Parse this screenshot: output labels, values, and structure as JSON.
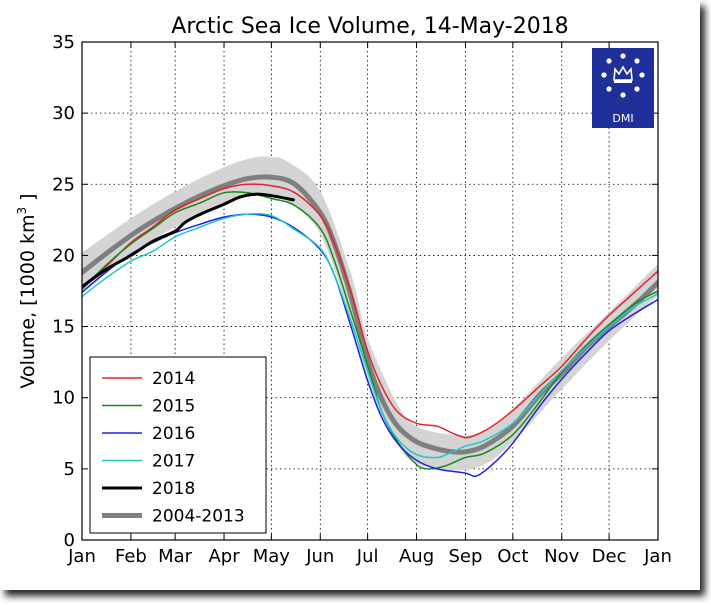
{
  "chart_data": {
    "type": "line",
    "title": "Arctic Sea Ice Volume, 14-May-2018",
    "ylabel_main": "Volume, [1000 km",
    "ylabel_sup": "3",
    "ylabel_end": " ]",
    "xlabel": "",
    "ylim": [
      0,
      35
    ],
    "xlim": [
      0,
      365
    ],
    "grid": true,
    "legend_placement": "lower-left",
    "x_ticks": [
      {
        "label": "Jan",
        "day": 0
      },
      {
        "label": "Feb",
        "day": 31
      },
      {
        "label": "Mar",
        "day": 59
      },
      {
        "label": "Apr",
        "day": 90
      },
      {
        "label": "May",
        "day": 120
      },
      {
        "label": "Jun",
        "day": 151
      },
      {
        "label": "Jul",
        "day": 181
      },
      {
        "label": "Aug",
        "day": 212
      },
      {
        "label": "Sep",
        "day": 243
      },
      {
        "label": "Oct",
        "day": 273
      },
      {
        "label": "Nov",
        "day": 304
      },
      {
        "label": "Dec",
        "day": 334
      },
      {
        "label": "Jan",
        "day": 365
      }
    ],
    "y_ticks": [
      0,
      5,
      10,
      15,
      20,
      25,
      30,
      35
    ],
    "band": {
      "x": [
        0,
        31,
        59,
        90,
        110,
        120,
        130,
        151,
        171,
        181,
        200,
        212,
        235,
        255,
        273,
        304,
        334,
        365
      ],
      "upper": [
        20.2,
        22.6,
        24.5,
        26.2,
        26.9,
        26.9,
        26.6,
        24.5,
        18.5,
        14.2,
        9.5,
        8.0,
        7.4,
        7.6,
        9.2,
        12.8,
        16.0,
        19.4
      ],
      "lower": [
        17.5,
        20.1,
        22.0,
        23.7,
        24.2,
        24.1,
        23.8,
        21.5,
        15.2,
        11.0,
        6.7,
        5.4,
        4.9,
        5.3,
        6.9,
        10.6,
        14.0,
        17.2
      ]
    },
    "series": [
      {
        "name": "2014",
        "color": "#e8202a",
        "width": 1.5,
        "x": [
          0,
          15,
          31,
          45,
          59,
          75,
          90,
          105,
          120,
          135,
          151,
          160,
          171,
          181,
          190,
          200,
          212,
          225,
          235,
          243,
          250,
          260,
          273,
          290,
          304,
          320,
          334,
          350,
          365
        ],
        "y": [
          17.8,
          19.2,
          20.9,
          22.0,
          23.2,
          24.0,
          24.7,
          25.0,
          24.9,
          24.4,
          22.8,
          20.8,
          17.2,
          13.3,
          10.8,
          9.0,
          8.2,
          8.0,
          7.5,
          7.2,
          7.4,
          8.0,
          9.1,
          10.8,
          12.2,
          14.2,
          15.8,
          17.4,
          18.9
        ]
      },
      {
        "name": "2015",
        "color": "#1b8a1b",
        "width": 1.5,
        "x": [
          0,
          15,
          31,
          45,
          59,
          75,
          90,
          105,
          120,
          135,
          151,
          160,
          171,
          181,
          190,
          200,
          212,
          220,
          230,
          243,
          255,
          273,
          290,
          304,
          320,
          334,
          350,
          365
        ],
        "y": [
          17.6,
          19.3,
          20.8,
          21.9,
          23.0,
          23.7,
          24.4,
          24.4,
          24.0,
          23.5,
          21.9,
          19.6,
          15.8,
          12.3,
          9.0,
          6.9,
          5.3,
          5.0,
          5.2,
          5.8,
          6.1,
          7.4,
          9.7,
          11.8,
          13.7,
          15.1,
          16.6,
          17.5
        ]
      },
      {
        "name": "2016",
        "color": "#2020e0",
        "width": 1.5,
        "x": [
          0,
          15,
          31,
          45,
          59,
          75,
          90,
          105,
          120,
          135,
          151,
          160,
          171,
          181,
          190,
          200,
          212,
          225,
          243,
          250,
          260,
          273,
          290,
          304,
          320,
          334,
          350,
          365
        ],
        "y": [
          17.4,
          18.8,
          20.1,
          20.9,
          21.6,
          22.2,
          22.7,
          22.9,
          22.7,
          21.9,
          20.4,
          18.6,
          14.8,
          11.2,
          8.6,
          6.8,
          5.6,
          5.0,
          4.7,
          4.5,
          5.3,
          6.8,
          9.4,
          11.3,
          13.2,
          14.7,
          15.9,
          16.9
        ]
      },
      {
        "name": "2017",
        "color": "#20c8c8",
        "width": 1.5,
        "x": [
          0,
          15,
          31,
          45,
          59,
          75,
          90,
          105,
          120,
          135,
          151,
          160,
          171,
          181,
          190,
          200,
          212,
          225,
          235,
          243,
          255,
          273,
          290,
          304,
          320,
          334,
          350,
          365
        ],
        "y": [
          17.1,
          18.4,
          19.6,
          20.3,
          21.3,
          22.0,
          22.6,
          22.9,
          22.8,
          21.8,
          20.5,
          18.6,
          15.2,
          11.9,
          9.0,
          7.1,
          6.0,
          5.8,
          6.2,
          6.6,
          7.0,
          8.2,
          10.2,
          11.9,
          13.6,
          15.0,
          16.4,
          17.3
        ]
      },
      {
        "name": "2018",
        "color": "#000000",
        "width": 3,
        "x": [
          0,
          15,
          31,
          45,
          59,
          65,
          75,
          90,
          100,
          110,
          120,
          134
        ],
        "y": [
          17.8,
          19.0,
          20.0,
          21.0,
          21.7,
          22.3,
          22.9,
          23.6,
          24.1,
          24.3,
          24.2,
          23.9
        ]
      },
      {
        "name": "2004-2013",
        "color": "#7f7f7f",
        "width": 5,
        "x": [
          0,
          15,
          31,
          45,
          59,
          75,
          90,
          105,
          120,
          135,
          151,
          160,
          171,
          181,
          190,
          200,
          212,
          225,
          235,
          243,
          255,
          273,
          290,
          304,
          320,
          334,
          350,
          365
        ],
        "y": [
          18.8,
          20.1,
          21.4,
          22.4,
          23.3,
          24.2,
          24.9,
          25.4,
          25.5,
          25.0,
          23.0,
          20.8,
          16.9,
          12.6,
          9.9,
          8.0,
          6.9,
          6.4,
          6.2,
          6.2,
          6.6,
          8.0,
          10.2,
          11.7,
          13.6,
          15.0,
          16.5,
          18.1
        ]
      }
    ]
  },
  "logo": {
    "text": "DMI",
    "bg": "#20309a"
  }
}
